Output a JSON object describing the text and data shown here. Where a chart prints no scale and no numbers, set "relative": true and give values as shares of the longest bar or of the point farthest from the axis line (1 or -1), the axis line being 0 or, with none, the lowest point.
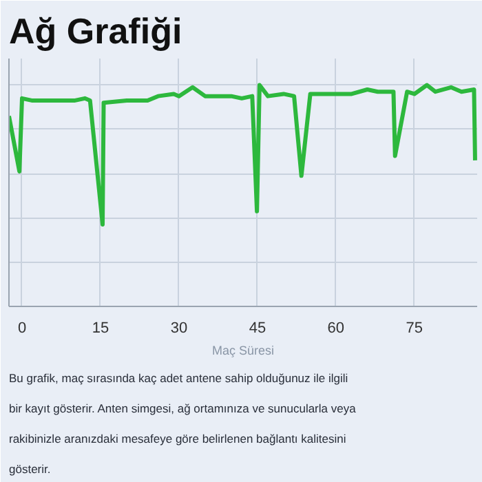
{
  "chart_data": {
    "type": "line",
    "title": "Ağ Grafiği",
    "xlabel": "Maç Süresi",
    "relative": true,
    "x": [
      -2.5,
      -0.5,
      0,
      2,
      5,
      10,
      12,
      13,
      15.4,
      15.6,
      20,
      24,
      26,
      29,
      30,
      32.6,
      35,
      40,
      42,
      44,
      44.9,
      45.4,
      47,
      50,
      52,
      53.4,
      55.1,
      60,
      63,
      66,
      68,
      71,
      71.3,
      73.6,
      75,
      77.4,
      79,
      82,
      84,
      86.4,
      86.6
    ],
    "series": [
      {
        "color": "#2db83d",
        "values": [
          0.86,
          0.61,
          0.94,
          0.93,
          0.93,
          0.93,
          0.94,
          0.93,
          0.37,
          0.92,
          0.93,
          0.93,
          0.95,
          0.96,
          0.95,
          0.99,
          0.95,
          0.95,
          0.94,
          0.95,
          0.43,
          1.0,
          0.95,
          0.96,
          0.95,
          0.59,
          0.96,
          0.96,
          0.96,
          0.98,
          0.97,
          0.97,
          0.68,
          0.97,
          0.96,
          1.0,
          0.97,
          0.99,
          0.97,
          0.98,
          0.66
        ]
      }
    ],
    "xlim": [
      -2.5,
      87
    ],
    "xticks": [
      0,
      15,
      30,
      45,
      60,
      75
    ],
    "grid": true,
    "marker": "none",
    "line_style": "solid",
    "annotations": [
      "Bu grafik, maç sırasında kaç adet antene sahip olduğunuz ile ilgili bir kayıt gösterir. Anten simgesi, ağ ortamınıza ve sunucularla veya rakibinizle aranızdaki mesafeye göre belirlenen bağlantı kalitesini gösterir."
    ]
  }
}
